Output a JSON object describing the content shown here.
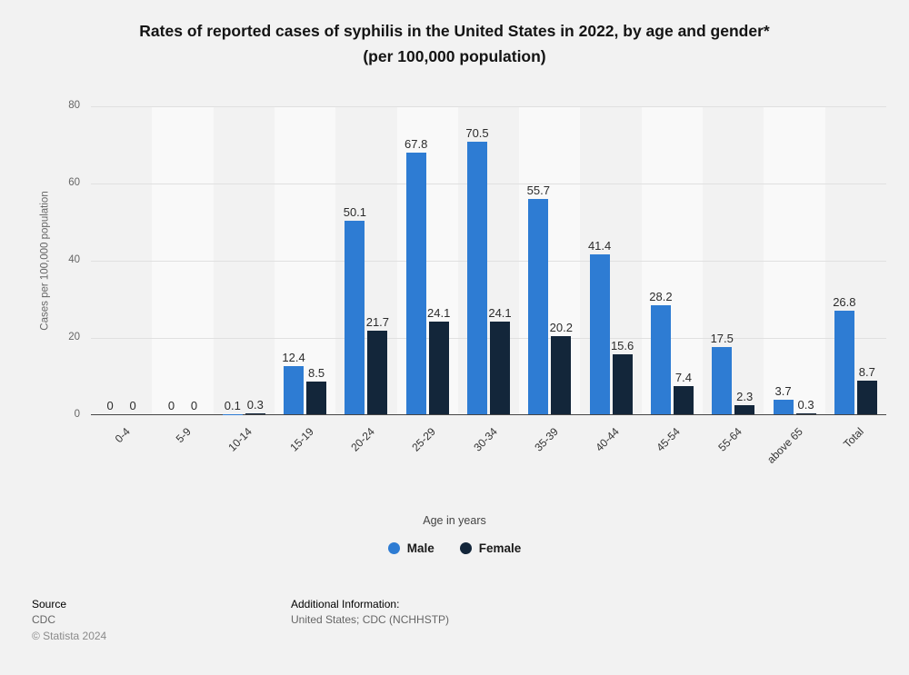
{
  "title": {
    "line1": "Rates of reported cases of syphilis in the United States in 2022, by age and gender*",
    "line2": "(per 100,000 population)"
  },
  "chart_data": {
    "type": "bar",
    "categories": [
      "0-4",
      "5-9",
      "10-14",
      "15-19",
      "20-24",
      "25-29",
      "30-34",
      "35-39",
      "40-44",
      "45-54",
      "55-64",
      "above 65",
      "Total"
    ],
    "series": [
      {
        "name": "Male",
        "color": "#2e7cd3",
        "values": [
          0,
          0,
          0.1,
          12.4,
          50.1,
          67.8,
          70.5,
          55.7,
          41.4,
          28.2,
          17.5,
          3.7,
          26.8
        ]
      },
      {
        "name": "Female",
        "color": "#13263a",
        "values": [
          0,
          0,
          0.3,
          8.5,
          21.7,
          24.1,
          24.1,
          20.2,
          15.6,
          7.4,
          2.3,
          0.3,
          8.7
        ]
      }
    ],
    "xlabel": "Age in years",
    "ylabel": "Cases per 100,000 population",
    "ylim": [
      0,
      80
    ],
    "yticks": [
      0,
      20,
      40,
      60,
      80
    ],
    "grid": true,
    "legend_position": "bottom"
  },
  "footer": {
    "source_label": "Source",
    "source_value": "CDC",
    "copyright": "© Statista 2024",
    "additional_label": "Additional Information:",
    "additional_value": "United States; CDC (NCHHSTP)"
  }
}
